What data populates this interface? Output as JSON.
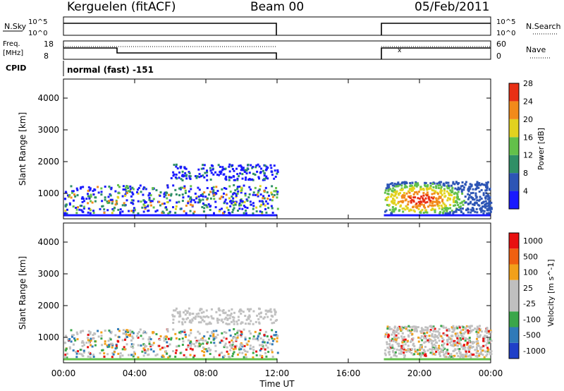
{
  "header": {
    "station": "Kerguelen (fitACF)",
    "beam": "Beam 00",
    "date": "05/Feb/2011"
  },
  "panels": {
    "nsky": {
      "label": "N.Sky",
      "ticks_left": [
        "10^5",
        "10^0"
      ],
      "right_label": "N.Search",
      "right_ticks": [
        "10^5",
        "10^0"
      ]
    },
    "freq": {
      "label_line1": "Freq.",
      "label_line2": "[MHz]",
      "ticks_left": [
        "18",
        "8"
      ],
      "right_label": "Nave",
      "right_ticks": [
        "60",
        "0"
      ]
    },
    "cpid": {
      "label": "CPID",
      "text": "normal (fast) -151"
    }
  },
  "chart_data": [
    {
      "type": "heatmap",
      "name": "power",
      "ylabel": "Slant Range [km]",
      "yticks": [
        1000,
        2000,
        3000,
        4000
      ],
      "ylim": [
        200,
        4600
      ],
      "xlim_hours": [
        0,
        24
      ],
      "colorbar": {
        "label": "Power [dB]",
        "ticks": [
          "4",
          "8",
          "12",
          "16",
          "20",
          "24",
          "28"
        ],
        "colors": [
          "#1a1aff",
          "#2d55b5",
          "#2f8f66",
          "#63c04a",
          "#e2d21f",
          "#f28a1a",
          "#e83015"
        ]
      },
      "data_windows_UT": [
        [
          0,
          12
        ],
        [
          18,
          24
        ]
      ]
    },
    {
      "type": "heatmap",
      "name": "velocity",
      "ylabel": "Slant Range [km]",
      "yticks": [
        1000,
        2000,
        3000,
        4000
      ],
      "ylim": [
        200,
        4600
      ],
      "xlim_hours": [
        0,
        24
      ],
      "colorbar": {
        "label": "Velocity [m s^-1]",
        "ticks": [
          "1000",
          "500",
          "100",
          "25",
          "-25",
          "-100",
          "-500",
          "-1000"
        ],
        "colors": [
          "#1f3fc8",
          "#2f7ab8",
          "#3aa64a",
          "#bfbfbf",
          "#bfbfbf",
          "#f2a01a",
          "#f06010",
          "#e81010"
        ]
      },
      "data_windows_UT": [
        [
          0,
          12
        ],
        [
          18,
          24
        ]
      ]
    }
  ],
  "xaxis": {
    "ticks": [
      "00:00",
      "04:00",
      "08:00",
      "12:00",
      "16:00",
      "20:00",
      "00:00"
    ],
    "label": "Time UT"
  }
}
